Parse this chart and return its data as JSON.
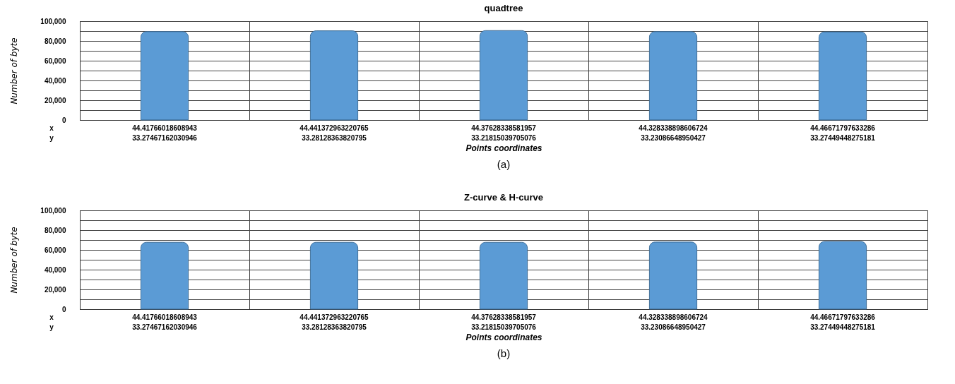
{
  "chart_data": [
    {
      "type": "bar",
      "title": "quadtree",
      "xlabel": "Points coordinates",
      "ylabel": "Number of byte",
      "categories": [
        "44.41766018608943\n33.27467162030946",
        "44.441372963220765\n33.28128363820795",
        "44.37628338581957\n33.21815039705076",
        "44.328338898606724\n33.23086648950427",
        "44.46671797633286\n33.27449448275181"
      ],
      "values": [
        89500,
        90300,
        90500,
        89500,
        89200
      ],
      "color": "#5b9bd5",
      "ylim": [
        0,
        100000
      ],
      "yticks": [
        0,
        {
          "value": 10000,
          "label": null
        },
        {
          "value": 20000,
          "label": "20,000"
        },
        {
          "value": 30000,
          "label": null
        },
        {
          "value": 40000,
          "label": "40,000"
        },
        {
          "value": 50000,
          "label": null
        },
        {
          "value": 60000,
          "label": "60,000"
        },
        {
          "value": 70000,
          "label": null
        },
        {
          "value": 80000,
          "label": "80,000"
        },
        {
          "value": 90000,
          "label": null
        },
        {
          "value": 100000,
          "label": "100,000"
        }
      ],
      "grid": true,
      "annotations": [
        "x",
        "y",
        "(a)"
      ]
    },
    {
      "type": "bar",
      "title": "Z-curve & H-curve",
      "xlabel": "Points coordinates",
      "ylabel": "Number of byte",
      "categories": [
        "44.41766018608943\n33.27467162030946",
        "44.441372963220765\n33.28128363820795",
        "44.37628338581957\n33.21815039705076",
        "44.328338898606724\n33.23086648950427",
        "44.46671797633286\n33.27449448275181"
      ],
      "values": [
        67700,
        67700,
        67700,
        68000,
        68500
      ],
      "color": "#5b9bd5",
      "ylim": [
        0,
        100000
      ],
      "yticks": [
        0,
        {
          "value": 10000,
          "label": null
        },
        {
          "value": 20000,
          "label": "20,000"
        },
        {
          "value": 30000,
          "label": null
        },
        {
          "value": 40000,
          "label": "40,000"
        },
        {
          "value": 50000,
          "label": null
        },
        {
          "value": 60000,
          "label": "60,000"
        },
        {
          "value": 70000,
          "label": null
        },
        {
          "value": 80000,
          "label": "80,000"
        },
        {
          "value": 90000,
          "label": null
        },
        {
          "value": 100000,
          "label": "100,000"
        }
      ],
      "grid": true,
      "annotations": [
        "x",
        "y",
        "(b)"
      ]
    }
  ]
}
